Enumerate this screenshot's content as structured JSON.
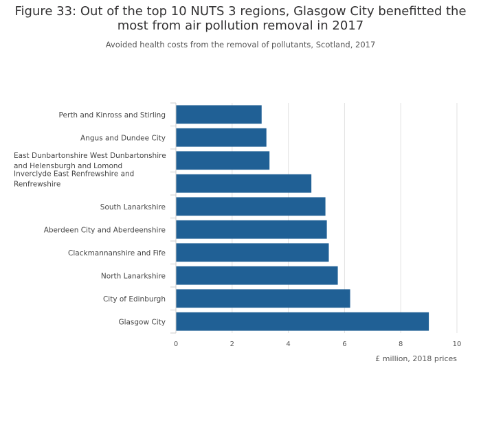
{
  "chart_data": {
    "type": "bar",
    "orientation": "horizontal",
    "title": "Figure 33: Out of the top 10 NUTS 3 regions, Glasgow City benefitted the most from air pollution removal in 2017",
    "subtitle": "Avoided health costs from the removal of pollutants, Scotland, 2017",
    "xlabel": "£ million, 2018 prices",
    "ylabel": "",
    "xlim": [
      0,
      10
    ],
    "x_ticks": [
      0,
      2,
      4,
      6,
      8,
      10
    ],
    "grid": "vertical",
    "bar_color": "#206095",
    "categories": [
      [
        "Perth and Kinross and Stirling"
      ],
      [
        "Angus and Dundee City"
      ],
      [
        "East Dunbartonshire West Dunbartonshire",
        "and Helensburgh and Lomond"
      ],
      [
        "Inverclyde East Renfrewshire and",
        "Renfrewshire"
      ],
      [
        "South Lanarkshire"
      ],
      [
        "Aberdeen City and Aberdeenshire"
      ],
      [
        "Clackmannanshire and Fife"
      ],
      [
        "North Lanarkshire"
      ],
      [
        "City of Edinburgh"
      ],
      [
        "Glasgow City"
      ]
    ],
    "values": [
      3.05,
      3.22,
      3.33,
      4.82,
      5.32,
      5.37,
      5.44,
      5.76,
      6.2,
      9.0
    ]
  }
}
